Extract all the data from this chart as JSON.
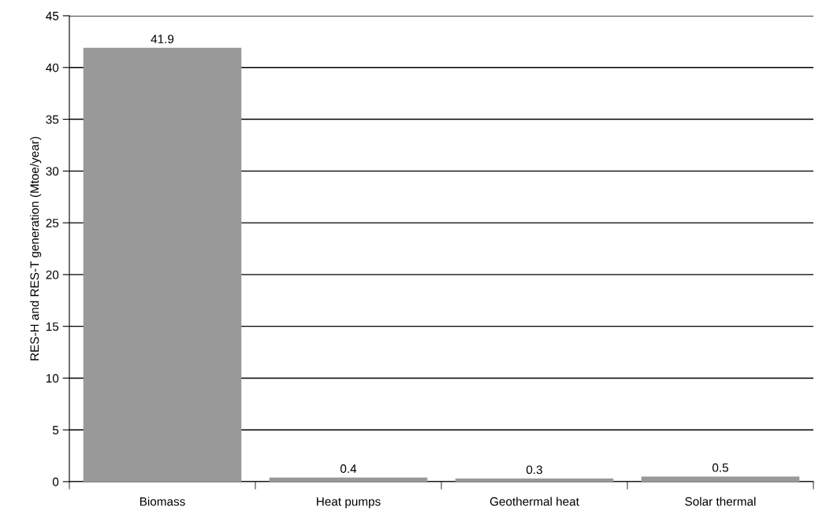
{
  "chart_data": {
    "type": "bar",
    "ylabel": "RES-H and RES-T generation (Mtoe/year)",
    "categories": [
      "Biomass",
      "Heat pumps",
      "Geothermal heat",
      "Solar thermal"
    ],
    "values": [
      41.9,
      0.4,
      0.3,
      0.5
    ],
    "color": "#999999",
    "ylim": [
      0,
      45
    ],
    "yticks": [
      0,
      5,
      10,
      15,
      20,
      25,
      30,
      35,
      40,
      45
    ],
    "grid": "y",
    "data_labels": true
  }
}
